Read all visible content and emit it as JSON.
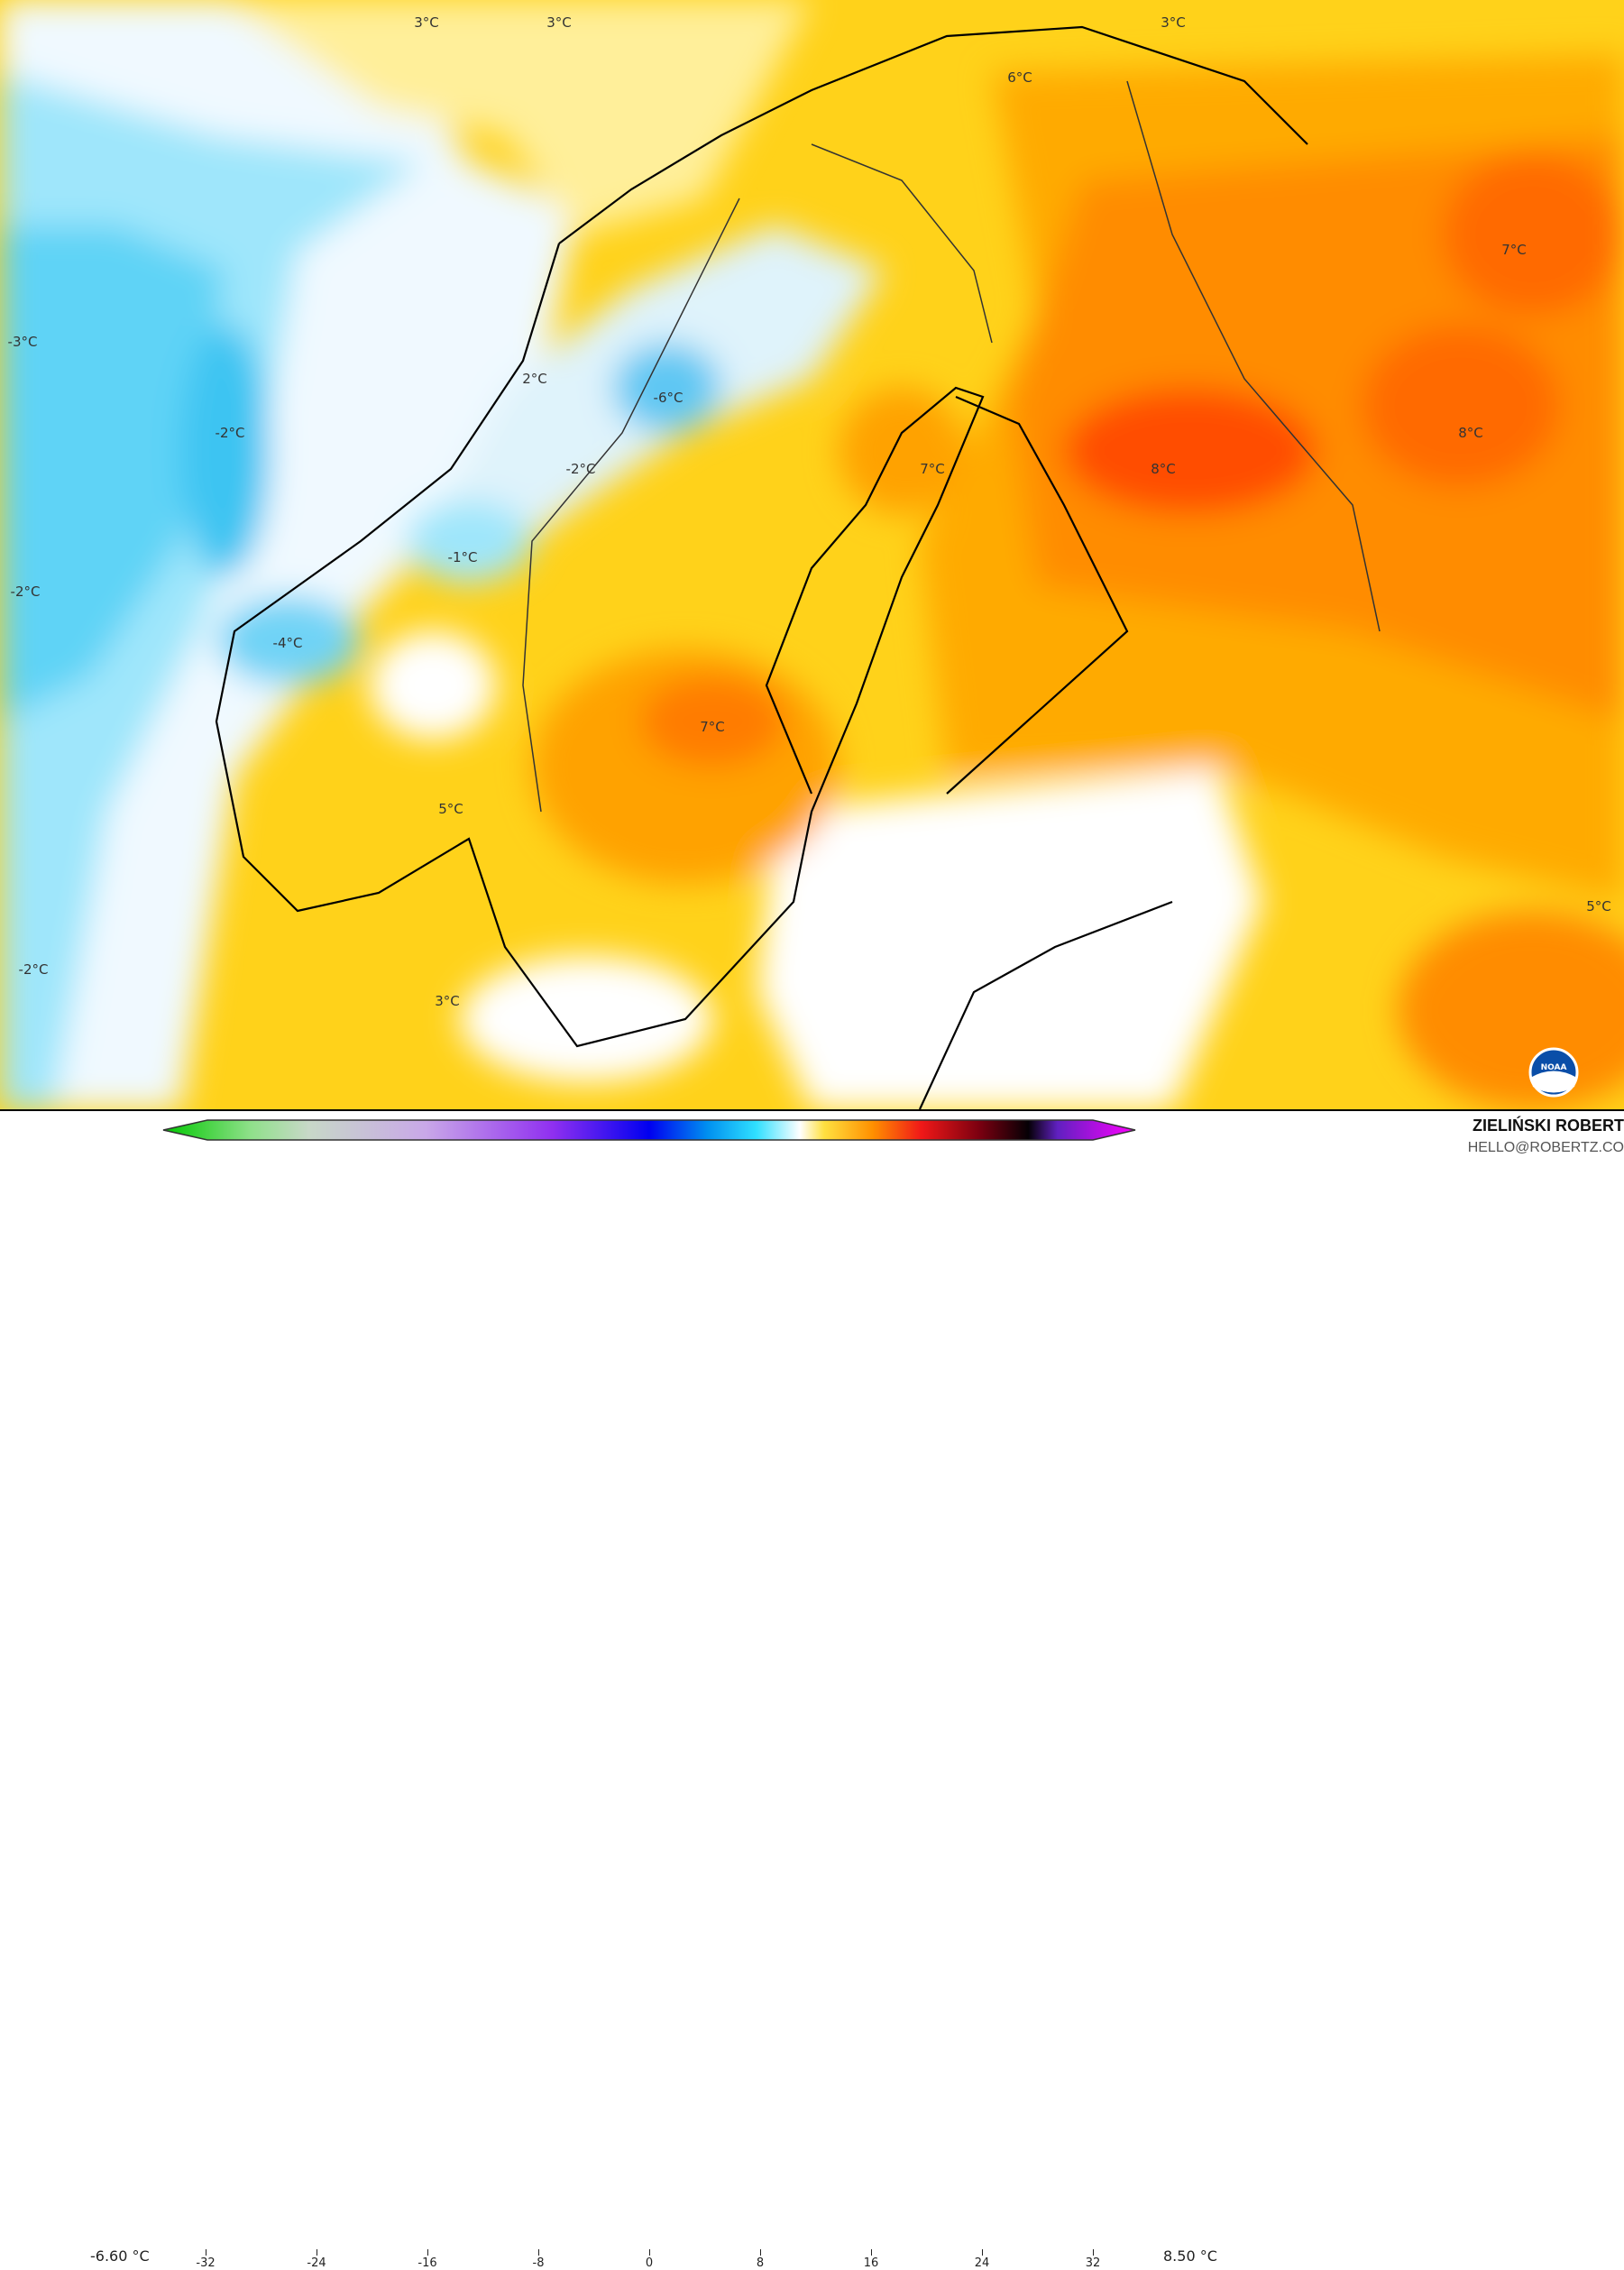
{
  "map": {
    "variable_unit": "°C",
    "labels": [
      {
        "text": "3°C"
      },
      {
        "text": "3°C"
      },
      {
        "text": "3°C"
      },
      {
        "text": "6°C"
      },
      {
        "text": "-3°C"
      },
      {
        "text": "-2°C"
      },
      {
        "text": "2°C"
      },
      {
        "text": "-6°C"
      },
      {
        "text": "-2°C"
      },
      {
        "text": "7°C"
      },
      {
        "text": "8°C"
      },
      {
        "text": "8°C"
      },
      {
        "text": "7°C"
      },
      {
        "text": "-1°C"
      },
      {
        "text": "-2°C"
      },
      {
        "text": "-4°C"
      },
      {
        "text": "7°C"
      },
      {
        "text": "5°C"
      },
      {
        "text": "-2°C"
      },
      {
        "text": "3°C"
      },
      {
        "text": "5°C"
      }
    ],
    "logo": "NOAA"
  },
  "legend": {
    "min_label": "-6.60 °C",
    "max_label": "8.50 °C",
    "ticks": [
      "-32",
      "-24",
      "-16",
      "-8",
      "0",
      "8",
      "16",
      "24",
      "32"
    ],
    "range": [
      -36,
      35
    ],
    "colors": {
      "cold": "#00d000",
      "mid_cold": "#8a2be2",
      "blue": "#0000ff",
      "cyan": "#22ddff",
      "zero": "#ffffff",
      "yellow": "#ffe000",
      "orange": "#ff8c00",
      "red": "#e81010",
      "dark": "#111111",
      "magenta": "#ff00ff"
    }
  },
  "credits": {
    "author": "ZIELIŃSKI ROBERT",
    "email": "HELLO@ROBERTZ.CO"
  }
}
